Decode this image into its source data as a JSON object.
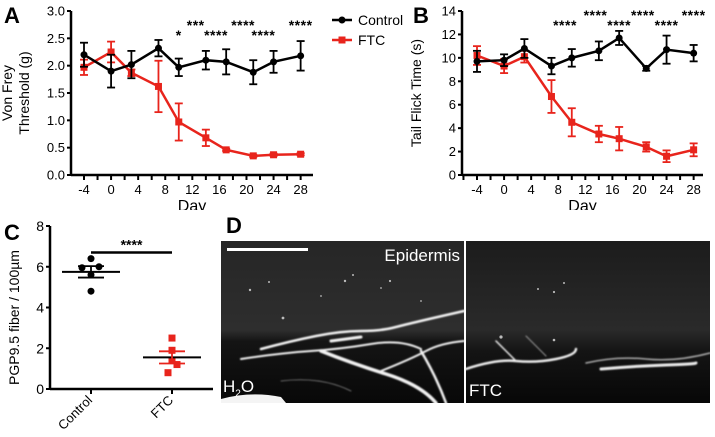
{
  "colors": {
    "control": "#000000",
    "ftc": "#e8241c",
    "axis": "#000000",
    "image_bg": "#0b0b0b"
  },
  "panels": {
    "A": {
      "letter": "A"
    },
    "B": {
      "letter": "B"
    },
    "C": {
      "letter": "C"
    },
    "D": {
      "letter": "D"
    }
  },
  "legend": {
    "items": [
      {
        "label": "Control",
        "color": "#000000",
        "marker": "circle"
      },
      {
        "label": "FTC",
        "color": "#e8241c",
        "marker": "square"
      }
    ]
  },
  "chart_data": [
    {
      "id": "A",
      "type": "line",
      "title": "",
      "xlabel": "Day",
      "ylabel": "Von Frey Threshold (g)",
      "ylabel_lines": [
        "Von Frey",
        "Threshold (g)"
      ],
      "xlim": [
        -6,
        30
      ],
      "ylim": [
        0,
        3.0
      ],
      "xticks": [
        -4,
        0,
        4,
        8,
        12,
        16,
        20,
        24,
        28
      ],
      "yticks": [
        0.0,
        0.5,
        1.0,
        1.5,
        2.0,
        2.5,
        3.0
      ],
      "ytick_labels": [
        "0.0",
        "0.5",
        "1.0",
        "1.5",
        "2.0",
        "2.5",
        "3.0"
      ],
      "grid": false,
      "legend_position": "right-outside",
      "x": [
        -4,
        0,
        3,
        7,
        10,
        14,
        17,
        21,
        24,
        28
      ],
      "series": [
        {
          "name": "Control",
          "color": "#000000",
          "marker": "circle",
          "values": [
            2.2,
            1.9,
            2.02,
            2.32,
            1.97,
            2.1,
            2.07,
            1.88,
            2.07,
            2.18
          ],
          "errors": [
            0.22,
            0.3,
            0.25,
            0.15,
            0.16,
            0.17,
            0.23,
            0.22,
            0.2,
            0.27
          ]
        },
        {
          "name": "FTC",
          "color": "#e8241c",
          "marker": "square",
          "values": [
            1.97,
            2.25,
            1.87,
            1.62,
            0.97,
            0.68,
            0.46,
            0.35,
            0.37,
            0.38
          ],
          "errors": [
            0.14,
            0.19,
            0.06,
            0.47,
            0.34,
            0.15,
            0.02,
            0.02,
            0.02,
            0.02
          ]
        }
      ],
      "annotations": [
        {
          "text": "*",
          "x": 10,
          "row": 2
        },
        {
          "text": "***",
          "x": 12.5,
          "row": 1
        },
        {
          "text": "****",
          "x": 15.5,
          "row": 2
        },
        {
          "text": "****",
          "x": 19.5,
          "row": 1
        },
        {
          "text": "****",
          "x": 22.5,
          "row": 2
        },
        {
          "text": "****",
          "x": 28,
          "row": 1
        }
      ]
    },
    {
      "id": "B",
      "type": "line",
      "title": "",
      "xlabel": "Day",
      "ylabel": "Tail Flick Time (s)",
      "xlim": [
        -6,
        30
      ],
      "ylim": [
        0,
        14
      ],
      "xticks": [
        -4,
        0,
        4,
        8,
        12,
        16,
        20,
        24,
        28
      ],
      "yticks": [
        0,
        2,
        4,
        6,
        8,
        10,
        12,
        14
      ],
      "ytick_labels": [
        "0",
        "2",
        "4",
        "6",
        "8",
        "10",
        "12",
        "14"
      ],
      "grid": false,
      "x": [
        -4,
        0,
        3,
        7,
        10,
        14,
        17,
        21,
        24,
        28
      ],
      "series": [
        {
          "name": "Control",
          "color": "#000000",
          "marker": "circle",
          "values": [
            9.7,
            9.8,
            10.8,
            9.3,
            10.0,
            10.6,
            11.7,
            9.1,
            10.7,
            10.4
          ],
          "errors": [
            0.9,
            0.5,
            0.8,
            0.7,
            0.75,
            0.8,
            0.6,
            0.2,
            1.2,
            0.7
          ]
        },
        {
          "name": "FTC",
          "color": "#e8241c",
          "marker": "square",
          "values": [
            10.2,
            9.3,
            10.1,
            6.7,
            4.5,
            3.5,
            3.1,
            2.4,
            1.6,
            2.15
          ],
          "errors": [
            0.8,
            0.6,
            0.5,
            1.4,
            1.2,
            0.7,
            1.0,
            0.4,
            0.5,
            0.55
          ]
        }
      ],
      "annotations": [
        {
          "text": "****",
          "x": 9,
          "row": 2
        },
        {
          "text": "****",
          "x": 13.5,
          "row": 1
        },
        {
          "text": "****",
          "x": 17,
          "row": 2
        },
        {
          "text": "****",
          "x": 20.5,
          "row": 1
        },
        {
          "text": "****",
          "x": 24,
          "row": 2
        },
        {
          "text": "****",
          "x": 28,
          "row": 1
        }
      ]
    },
    {
      "id": "C",
      "type": "scatter",
      "title": "",
      "xlabel": "",
      "ylabel": "PGP9.5 fiber / 100µm",
      "categories": [
        "Control",
        "FTC"
      ],
      "ylim": [
        0,
        8
      ],
      "yticks": [
        0,
        2,
        4,
        6,
        8
      ],
      "ytick_labels": [
        "0",
        "2",
        "4",
        "6",
        "8"
      ],
      "grid": false,
      "series": [
        {
          "name": "Control",
          "color": "#000000",
          "marker": "circle",
          "points": [
            {
              "dx": 0,
              "y": 6.4
            },
            {
              "dx": -9,
              "y": 5.95
            },
            {
              "dx": 8,
              "y": 6.0
            },
            {
              "dx": 0,
              "y": 5.6
            },
            {
              "dx": 0,
              "y": 4.8
            }
          ],
          "mean": 5.75,
          "sem": 0.28
        },
        {
          "name": "FTC",
          "color": "#e8241c",
          "marker": "square",
          "points": [
            {
              "dx": 0,
              "y": 2.5
            },
            {
              "dx": 0,
              "y": 1.9
            },
            {
              "dx": 0,
              "y": 1.4
            },
            {
              "dx": 5,
              "y": 1.2
            },
            {
              "dx": -4,
              "y": 0.8
            }
          ],
          "mean": 1.55,
          "sem": 0.3
        }
      ],
      "annotations": [
        {
          "text": "****",
          "type": "significance-bar",
          "from": "Control",
          "to": "FTC",
          "y": 6.7
        }
      ]
    }
  ],
  "image_panel": {
    "label_epidermis": "Epidermis",
    "left_label_main": "H",
    "left_label_sub": "2",
    "left_label_tail": "O",
    "right_label": "FTC"
  }
}
